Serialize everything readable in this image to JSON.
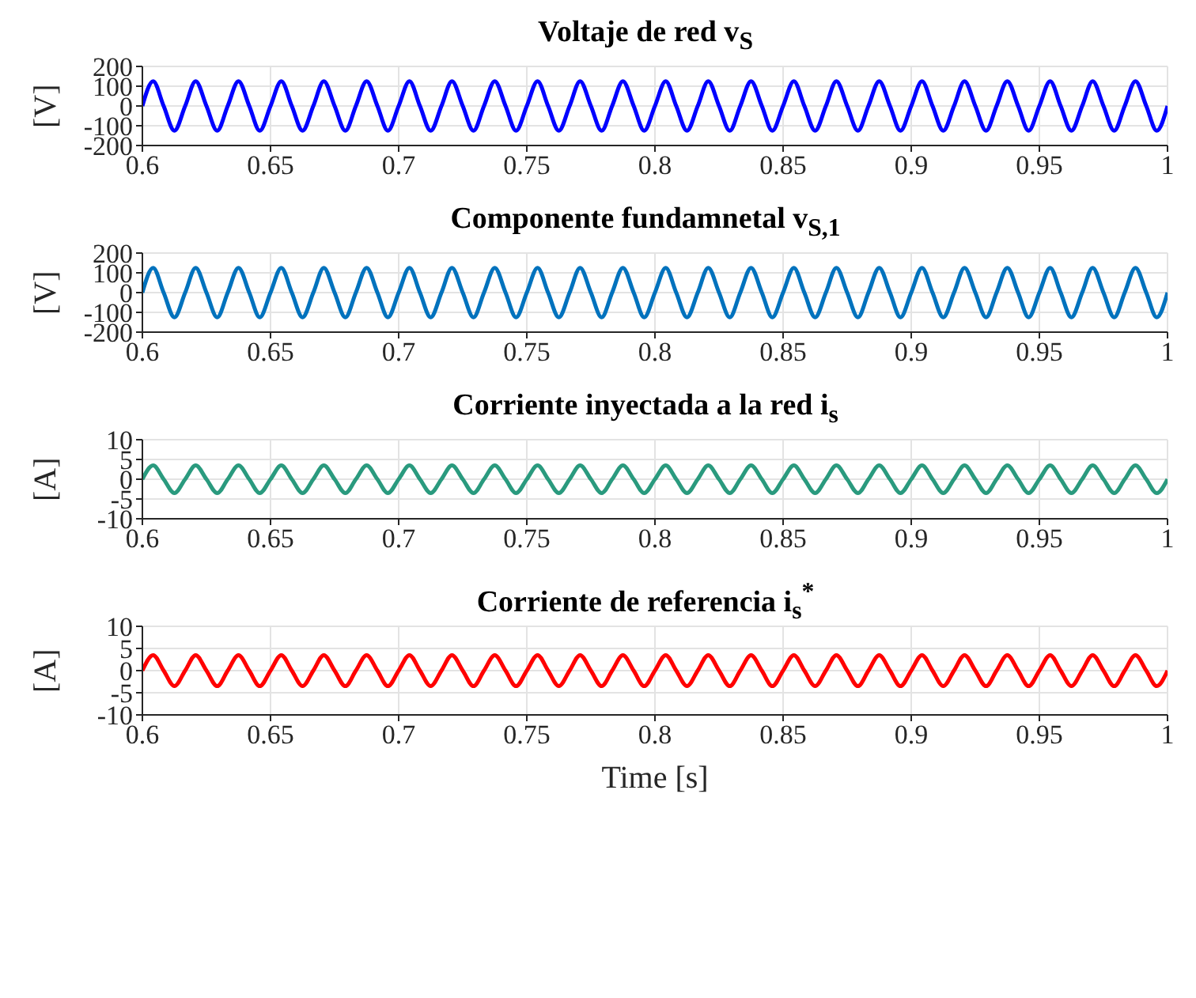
{
  "chart_data": [
    {
      "type": "line",
      "title": "Voltaje de red v$_{S}$",
      "ylabel": "[V]",
      "xlim": [
        0.6,
        1
      ],
      "xticks": [
        0.6,
        0.65,
        0.7,
        0.75,
        0.8,
        0.85,
        0.9,
        0.95,
        1
      ],
      "ylim": [
        -200,
        200
      ],
      "yticks": [
        -200,
        -100,
        0,
        100,
        200
      ],
      "grid": true,
      "x": [
        0.6,
        0.6042,
        0.6083,
        0.6125,
        0.6167,
        0.6208,
        0.625,
        0.6292,
        0.6333,
        0.6375,
        0.6417,
        0.6458,
        0.65,
        0.6542,
        0.6583,
        0.6625,
        0.6667,
        0.6708,
        0.675,
        0.6792,
        0.6833,
        0.6875,
        0.6917,
        0.6958,
        0.7,
        0.7042,
        0.7083,
        0.7125,
        0.7167,
        0.7208,
        0.725,
        0.7292,
        0.7333,
        0.7375,
        0.7417,
        0.7458,
        0.75,
        0.7542,
        0.7583,
        0.7625,
        0.7667,
        0.7708,
        0.775,
        0.7792,
        0.7833,
        0.7875,
        0.7917,
        0.7958,
        0.8,
        0.8042,
        0.8083,
        0.8125,
        0.8167,
        0.8208,
        0.825,
        0.8292,
        0.8333,
        0.8375,
        0.8417,
        0.8458,
        0.85,
        0.8542,
        0.8583,
        0.8625,
        0.8667,
        0.8708,
        0.875,
        0.8792,
        0.8833,
        0.8875,
        0.8917,
        0.8958,
        0.9,
        0.9042,
        0.9083,
        0.9125,
        0.9167,
        0.9208,
        0.925,
        0.9292,
        0.9333,
        0.9375,
        0.9417,
        0.9458,
        0.95,
        0.9542,
        0.9583,
        0.9625,
        0.9667,
        0.9708,
        0.975,
        0.9792,
        0.9833,
        0.9875,
        0.9917,
        0.9958,
        1
      ],
      "series": [
        {
          "color": "#0000ff",
          "values": [
            0,
            125,
            0,
            -125,
            0,
            125,
            0,
            -125,
            0,
            125,
            0,
            -125,
            0,
            125,
            0,
            -125,
            0,
            125,
            0,
            -125,
            0,
            125,
            0,
            -125,
            0,
            125,
            0,
            -125,
            0,
            125,
            0,
            -125,
            0,
            125,
            0,
            -125,
            0,
            125,
            0,
            -125,
            0,
            125,
            0,
            -125,
            0,
            125,
            0,
            -125,
            0,
            125,
            0,
            -125,
            0,
            125,
            0,
            -125,
            0,
            125,
            0,
            -125,
            0,
            125,
            0,
            -125,
            0,
            125,
            0,
            -125,
            0,
            125,
            0,
            -125,
            0,
            125,
            0,
            -125,
            0,
            125,
            0,
            -125,
            0,
            125,
            0,
            -125,
            0,
            125,
            0,
            -125,
            0,
            125,
            0,
            -125,
            0,
            125,
            0,
            -125,
            0
          ]
        }
      ]
    },
    {
      "type": "line",
      "title": "Componente fundamnetal v$_{S,1}$",
      "ylabel": "[V]",
      "xlim": [
        0.6,
        1
      ],
      "xticks": [
        0.6,
        0.65,
        0.7,
        0.75,
        0.8,
        0.85,
        0.9,
        0.95,
        1
      ],
      "ylim": [
        -200,
        200
      ],
      "yticks": [
        -200,
        -100,
        0,
        100,
        200
      ],
      "grid": true,
      "x": [
        0.6,
        0.6042,
        0.6083,
        0.6125,
        0.6167,
        0.6208,
        0.625,
        0.6292,
        0.6333,
        0.6375,
        0.6417,
        0.6458,
        0.65,
        0.6542,
        0.6583,
        0.6625,
        0.6667,
        0.6708,
        0.675,
        0.6792,
        0.6833,
        0.6875,
        0.6917,
        0.6958,
        0.7,
        0.7042,
        0.7083,
        0.7125,
        0.7167,
        0.7208,
        0.725,
        0.7292,
        0.7333,
        0.7375,
        0.7417,
        0.7458,
        0.75,
        0.7542,
        0.7583,
        0.7625,
        0.7667,
        0.7708,
        0.775,
        0.7792,
        0.7833,
        0.7875,
        0.7917,
        0.7958,
        0.8,
        0.8042,
        0.8083,
        0.8125,
        0.8167,
        0.8208,
        0.825,
        0.8292,
        0.8333,
        0.8375,
        0.8417,
        0.8458,
        0.85,
        0.8542,
        0.8583,
        0.8625,
        0.8667,
        0.8708,
        0.875,
        0.8792,
        0.8833,
        0.8875,
        0.8917,
        0.8958,
        0.9,
        0.9042,
        0.9083,
        0.9125,
        0.9167,
        0.9208,
        0.925,
        0.9292,
        0.9333,
        0.9375,
        0.9417,
        0.9458,
        0.95,
        0.9542,
        0.9583,
        0.9625,
        0.9667,
        0.9708,
        0.975,
        0.9792,
        0.9833,
        0.9875,
        0.9917,
        0.9958,
        1
      ],
      "series": [
        {
          "color": "#0072bd",
          "values": [
            0,
            125,
            0,
            -125,
            0,
            125,
            0,
            -125,
            0,
            125,
            0,
            -125,
            0,
            125,
            0,
            -125,
            0,
            125,
            0,
            -125,
            0,
            125,
            0,
            -125,
            0,
            125,
            0,
            -125,
            0,
            125,
            0,
            -125,
            0,
            125,
            0,
            -125,
            0,
            125,
            0,
            -125,
            0,
            125,
            0,
            -125,
            0,
            125,
            0,
            -125,
            0,
            125,
            0,
            -125,
            0,
            125,
            0,
            -125,
            0,
            125,
            0,
            -125,
            0,
            125,
            0,
            -125,
            0,
            125,
            0,
            -125,
            0,
            125,
            0,
            -125,
            0,
            125,
            0,
            -125,
            0,
            125,
            0,
            -125,
            0,
            125,
            0,
            -125,
            0,
            125,
            0,
            -125,
            0,
            125,
            0,
            -125,
            0,
            125,
            0,
            -125,
            0
          ]
        }
      ]
    },
    {
      "type": "line",
      "title": "Corriente inyectada a la red i$_{s}$",
      "ylabel": "[A]",
      "xlim": [
        0.6,
        1
      ],
      "xticks": [
        0.6,
        0.65,
        0.7,
        0.75,
        0.8,
        0.85,
        0.9,
        0.95,
        1
      ],
      "ylim": [
        -10,
        10
      ],
      "yticks": [
        -10,
        -5,
        0,
        5,
        10
      ],
      "grid": true,
      "x": [
        0.6,
        0.6042,
        0.6083,
        0.6125,
        0.6167,
        0.6208,
        0.625,
        0.6292,
        0.6333,
        0.6375,
        0.6417,
        0.6458,
        0.65,
        0.6542,
        0.6583,
        0.6625,
        0.6667,
        0.6708,
        0.675,
        0.6792,
        0.6833,
        0.6875,
        0.6917,
        0.6958,
        0.7,
        0.7042,
        0.7083,
        0.7125,
        0.7167,
        0.7208,
        0.725,
        0.7292,
        0.7333,
        0.7375,
        0.7417,
        0.7458,
        0.75,
        0.7542,
        0.7583,
        0.7625,
        0.7667,
        0.7708,
        0.775,
        0.7792,
        0.7833,
        0.7875,
        0.7917,
        0.7958,
        0.8,
        0.8042,
        0.8083,
        0.8125,
        0.8167,
        0.8208,
        0.825,
        0.8292,
        0.8333,
        0.8375,
        0.8417,
        0.8458,
        0.85,
        0.8542,
        0.8583,
        0.8625,
        0.8667,
        0.8708,
        0.875,
        0.8792,
        0.8833,
        0.8875,
        0.8917,
        0.8958,
        0.9,
        0.9042,
        0.9083,
        0.9125,
        0.9167,
        0.9208,
        0.925,
        0.9292,
        0.9333,
        0.9375,
        0.9417,
        0.9458,
        0.95,
        0.9542,
        0.9583,
        0.9625,
        0.9667,
        0.9708,
        0.975,
        0.9792,
        0.9833,
        0.9875,
        0.9917,
        0.9958,
        1
      ],
      "series": [
        {
          "color": "#2a9a7e",
          "values": [
            0,
            3.5,
            0,
            -3.5,
            0,
            3.5,
            0,
            -3.5,
            0,
            3.5,
            0,
            -3.5,
            0,
            3.5,
            0,
            -3.5,
            0,
            3.5,
            0,
            -3.5,
            0,
            3.5,
            0,
            -3.5,
            0,
            3.5,
            0,
            -3.5,
            0,
            3.5,
            0,
            -3.5,
            0,
            3.5,
            0,
            -3.5,
            0,
            3.5,
            0,
            -3.5,
            0,
            3.5,
            0,
            -3.5,
            0,
            3.5,
            0,
            -3.5,
            0,
            3.5,
            0,
            -3.5,
            0,
            3.5,
            0,
            -3.5,
            0,
            3.5,
            0,
            -3.5,
            0,
            3.5,
            0,
            -3.5,
            0,
            3.5,
            0,
            -3.5,
            0,
            3.5,
            0,
            -3.5,
            0,
            3.5,
            0,
            -3.5,
            0,
            3.5,
            0,
            -3.5,
            0,
            3.5,
            0,
            -3.5,
            0,
            3.5,
            0,
            -3.5,
            0,
            3.5,
            0,
            -3.5,
            0,
            3.5,
            0,
            -3.5,
            0
          ]
        }
      ]
    },
    {
      "type": "line",
      "title": "Corriente de referencia i$_{s}$$^{*}$",
      "ylabel": "[A]",
      "xlabel": "Time [s]",
      "xlim": [
        0.6,
        1
      ],
      "xticks": [
        0.6,
        0.65,
        0.7,
        0.75,
        0.8,
        0.85,
        0.9,
        0.95,
        1
      ],
      "ylim": [
        -10,
        10
      ],
      "yticks": [
        -10,
        -5,
        0,
        5,
        10
      ],
      "grid": true,
      "x": [
        0.6,
        0.6042,
        0.6083,
        0.6125,
        0.6167,
        0.6208,
        0.625,
        0.6292,
        0.6333,
        0.6375,
        0.6417,
        0.6458,
        0.65,
        0.6542,
        0.6583,
        0.6625,
        0.6667,
        0.6708,
        0.675,
        0.6792,
        0.6833,
        0.6875,
        0.6917,
        0.6958,
        0.7,
        0.7042,
        0.7083,
        0.7125,
        0.7167,
        0.7208,
        0.725,
        0.7292,
        0.7333,
        0.7375,
        0.7417,
        0.7458,
        0.75,
        0.7542,
        0.7583,
        0.7625,
        0.7667,
        0.7708,
        0.775,
        0.7792,
        0.7833,
        0.7875,
        0.7917,
        0.7958,
        0.8,
        0.8042,
        0.8083,
        0.8125,
        0.8167,
        0.8208,
        0.825,
        0.8292,
        0.8333,
        0.8375,
        0.8417,
        0.8458,
        0.85,
        0.8542,
        0.8583,
        0.8625,
        0.8667,
        0.8708,
        0.875,
        0.8792,
        0.8833,
        0.8875,
        0.8917,
        0.8958,
        0.9,
        0.9042,
        0.9083,
        0.9125,
        0.9167,
        0.9208,
        0.925,
        0.9292,
        0.9333,
        0.9375,
        0.9417,
        0.9458,
        0.95,
        0.9542,
        0.9583,
        0.9625,
        0.9667,
        0.9708,
        0.975,
        0.9792,
        0.9833,
        0.9875,
        0.9917,
        0.9958,
        1
      ],
      "series": [
        {
          "color": "#ff0000",
          "values": [
            0,
            3.5,
            0,
            -3.5,
            0,
            3.5,
            0,
            -3.5,
            0,
            3.5,
            0,
            -3.5,
            0,
            3.5,
            0,
            -3.5,
            0,
            3.5,
            0,
            -3.5,
            0,
            3.5,
            0,
            -3.5,
            0,
            3.5,
            0,
            -3.5,
            0,
            3.5,
            0,
            -3.5,
            0,
            3.5,
            0,
            -3.5,
            0,
            3.5,
            0,
            -3.5,
            0,
            3.5,
            0,
            -3.5,
            0,
            3.5,
            0,
            -3.5,
            0,
            3.5,
            0,
            -3.5,
            0,
            3.5,
            0,
            -3.5,
            0,
            3.5,
            0,
            -3.5,
            0,
            3.5,
            0,
            -3.5,
            0,
            3.5,
            0,
            -3.5,
            0,
            3.5,
            0,
            -3.5,
            0,
            3.5,
            0,
            -3.5,
            0,
            3.5,
            0,
            -3.5,
            0,
            3.5,
            0,
            -3.5,
            0,
            3.5,
            0,
            -3.5,
            0,
            3.5,
            0,
            -3.5,
            0,
            3.5,
            0,
            -3.5,
            0
          ]
        }
      ]
    }
  ]
}
